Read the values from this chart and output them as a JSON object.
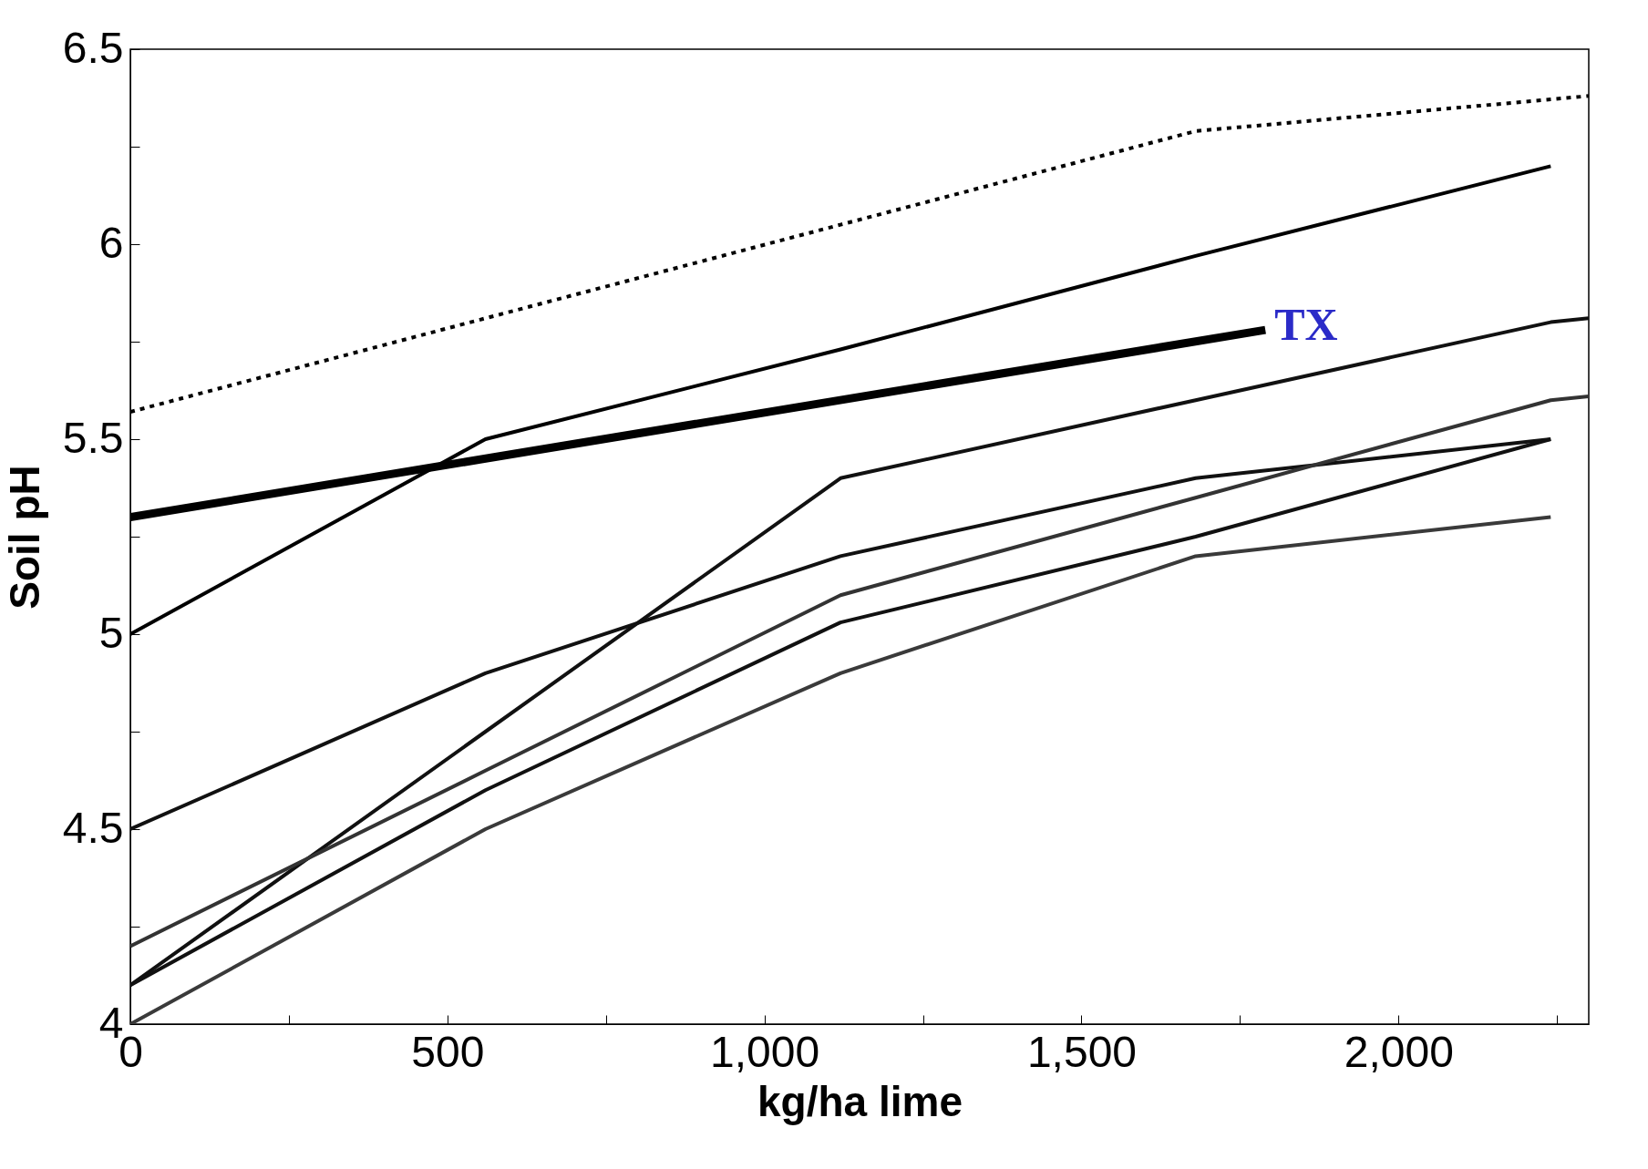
{
  "chart_data": {
    "type": "line",
    "xlabel": "kg/ha lime",
    "ylabel": "Soil pH",
    "xlim": [
      0,
      2300
    ],
    "ylim": [
      4,
      6.5
    ],
    "xticks": [
      0,
      {
        "value": 250,
        "label": null
      },
      500,
      {
        "value": 750,
        "label": null
      },
      {
        "value": 1000,
        "label": "1,000"
      },
      {
        "value": 1250,
        "label": null
      },
      {
        "value": 1500,
        "label": "1,500"
      },
      {
        "value": 1750,
        "label": null
      },
      {
        "value": 2000,
        "label": "2,000"
      },
      {
        "value": 2250,
        "label": null
      }
    ],
    "yticks": [
      4,
      {
        "value": 4.25,
        "label": null
      },
      4.5,
      {
        "value": 4.75,
        "label": null
      },
      5,
      {
        "value": 5.25,
        "label": null
      },
      5.5,
      {
        "value": 5.75,
        "label": null
      },
      6,
      {
        "value": 6.25,
        "label": null
      },
      6.5
    ],
    "grid": false,
    "marker": "none",
    "series": [
      {
        "color": "#000000",
        "line_style": "dotted",
        "x": [
          0,
          560,
          1120,
          1680,
          2300
        ],
        "values": [
          5.57,
          5.81,
          6.05,
          6.29,
          6.38
        ]
      },
      {
        "color": "#000000",
        "x": [
          0,
          560,
          1120,
          1680,
          2240
        ],
        "values": [
          5.0,
          5.5,
          5.73,
          5.97,
          6.2
        ]
      },
      {
        "name": "TX",
        "color": "#000000",
        "x": [
          0,
          1790
        ],
        "values": [
          5.3,
          5.78
        ]
      },
      {
        "color": "#111111",
        "x": [
          0,
          560,
          1120,
          1680,
          2240,
          2300
        ],
        "values": [
          4.1,
          4.75,
          5.4,
          5.6,
          5.8,
          5.81
        ]
      },
      {
        "color": "#111111",
        "x": [
          0,
          560,
          1120,
          1680,
          2240
        ],
        "values": [
          4.5,
          4.9,
          5.2,
          5.4,
          5.5
        ]
      },
      {
        "color": "#333333",
        "x": [
          0,
          560,
          1120,
          1680,
          2240,
          2300
        ],
        "values": [
          4.2,
          4.65,
          5.1,
          5.35,
          5.6,
          5.61
        ]
      },
      {
        "color": "#111111",
        "x": [
          0,
          560,
          1120,
          1680,
          2240
        ],
        "values": [
          4.1,
          4.6,
          5.03,
          5.25,
          5.5
        ]
      },
      {
        "color": "#3a3a3a",
        "x": [
          0,
          560,
          1120,
          1680,
          2240
        ],
        "values": [
          4.0,
          4.5,
          4.9,
          5.2,
          5.3
        ]
      }
    ]
  }
}
